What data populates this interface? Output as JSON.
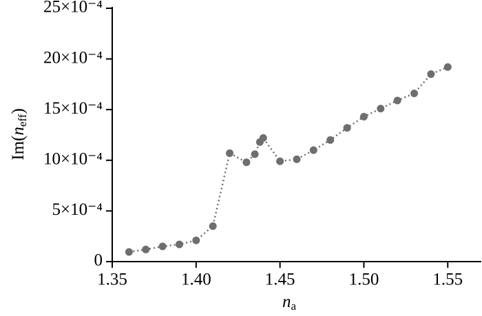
{
  "chart_data": {
    "type": "line",
    "xlabel": {
      "symbol": "n",
      "subscript": "a"
    },
    "ylabel": {
      "prefix": "Im(",
      "symbol": "n",
      "subscript": "eff",
      "suffix": ")"
    },
    "x": [
      1.36,
      1.37,
      1.38,
      1.39,
      1.4,
      1.41,
      1.42,
      1.43,
      1.435,
      1.438,
      1.44,
      1.45,
      1.46,
      1.47,
      1.48,
      1.49,
      1.5,
      1.51,
      1.52,
      1.53,
      1.54,
      1.55
    ],
    "series": [
      {
        "color": "#6e6e6e",
        "values": [
          9.5e-05,
          0.00012,
          0.00015,
          0.00017,
          0.00021,
          0.00035,
          0.00107,
          0.00098,
          0.00106,
          0.00118,
          0.00122,
          0.00099,
          0.00101,
          0.0011,
          0.0012,
          0.00132,
          0.00143,
          0.00151,
          0.00159,
          0.00166,
          0.00185,
          0.00192
        ]
      }
    ],
    "xlim": [
      1.35,
      1.57
    ],
    "xticks": [
      1.35,
      {
        "value": 1.4,
        "label": "1.40"
      },
      1.45,
      {
        "value": 1.5,
        "label": "1.50"
      },
      1.55
    ],
    "ylim": [
      0,
      0.0025
    ],
    "yticks": [
      0,
      {
        "value": 0.0005,
        "label": "5×10⁻⁴"
      },
      {
        "value": 0.001,
        "label": "10×10⁻⁴"
      },
      {
        "value": 0.0015,
        "label": "15×10⁻⁴"
      },
      {
        "value": 0.002,
        "label": "20×10⁻⁴"
      },
      {
        "value": 0.0025,
        "label": "25×10⁻⁴"
      }
    ],
    "grid": false
  }
}
